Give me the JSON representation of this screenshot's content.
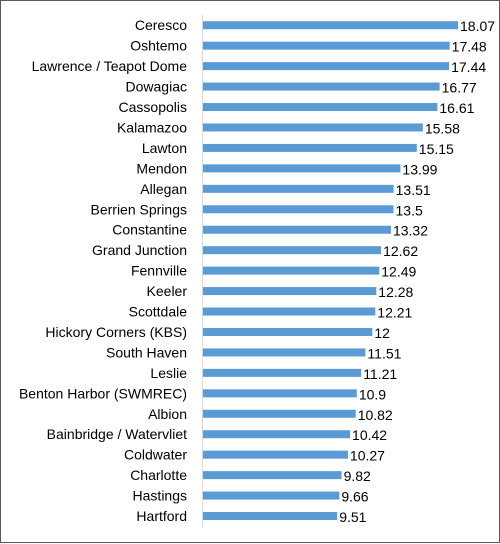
{
  "chart_data": {
    "type": "bar",
    "orientation": "horizontal",
    "categories": [
      "Ceresco",
      "Oshtemo",
      "Lawrence / Teapot Dome",
      "Dowagiac",
      "Cassopolis",
      "Kalamazoo",
      "Lawton",
      "Mendon",
      "Allegan",
      "Berrien Springs",
      "Constantine",
      "Grand Junction",
      "Fennville",
      "Keeler",
      "Scottdale",
      "Hickory Corners (KBS)",
      "South Haven",
      "Leslie",
      "Benton Harbor (SWMREC)",
      "Albion",
      "Bainbridge / Watervliet",
      "Coldwater",
      "Charlotte",
      "Hastings",
      "Hartford"
    ],
    "values": [
      18.07,
      17.48,
      17.44,
      16.77,
      16.61,
      15.58,
      15.15,
      13.99,
      13.51,
      13.5,
      13.32,
      12.62,
      12.49,
      12.28,
      12.21,
      12,
      11.51,
      11.21,
      10.9,
      10.82,
      10.42,
      10.27,
      9.82,
      9.66,
      9.51
    ],
    "value_labels": [
      "18.07",
      "17.48",
      "17.44",
      "16.77",
      "16.61",
      "15.58",
      "15.15",
      "13.99",
      "13.51",
      "13.5",
      "13.32",
      "12.62",
      "12.49",
      "12.28",
      "12.21",
      "12",
      "11.51",
      "11.21",
      "10.9",
      "10.82",
      "10.42",
      "10.27",
      "9.82",
      "9.66",
      "9.51"
    ],
    "title": "",
    "xlabel": "",
    "ylabel": "",
    "xlim": [
      0,
      18.07
    ],
    "grid": false,
    "legend": "none",
    "colors": {
      "bar": "#5b9bd5",
      "axis": "#d9d9d9",
      "border": "#595959"
    }
  }
}
